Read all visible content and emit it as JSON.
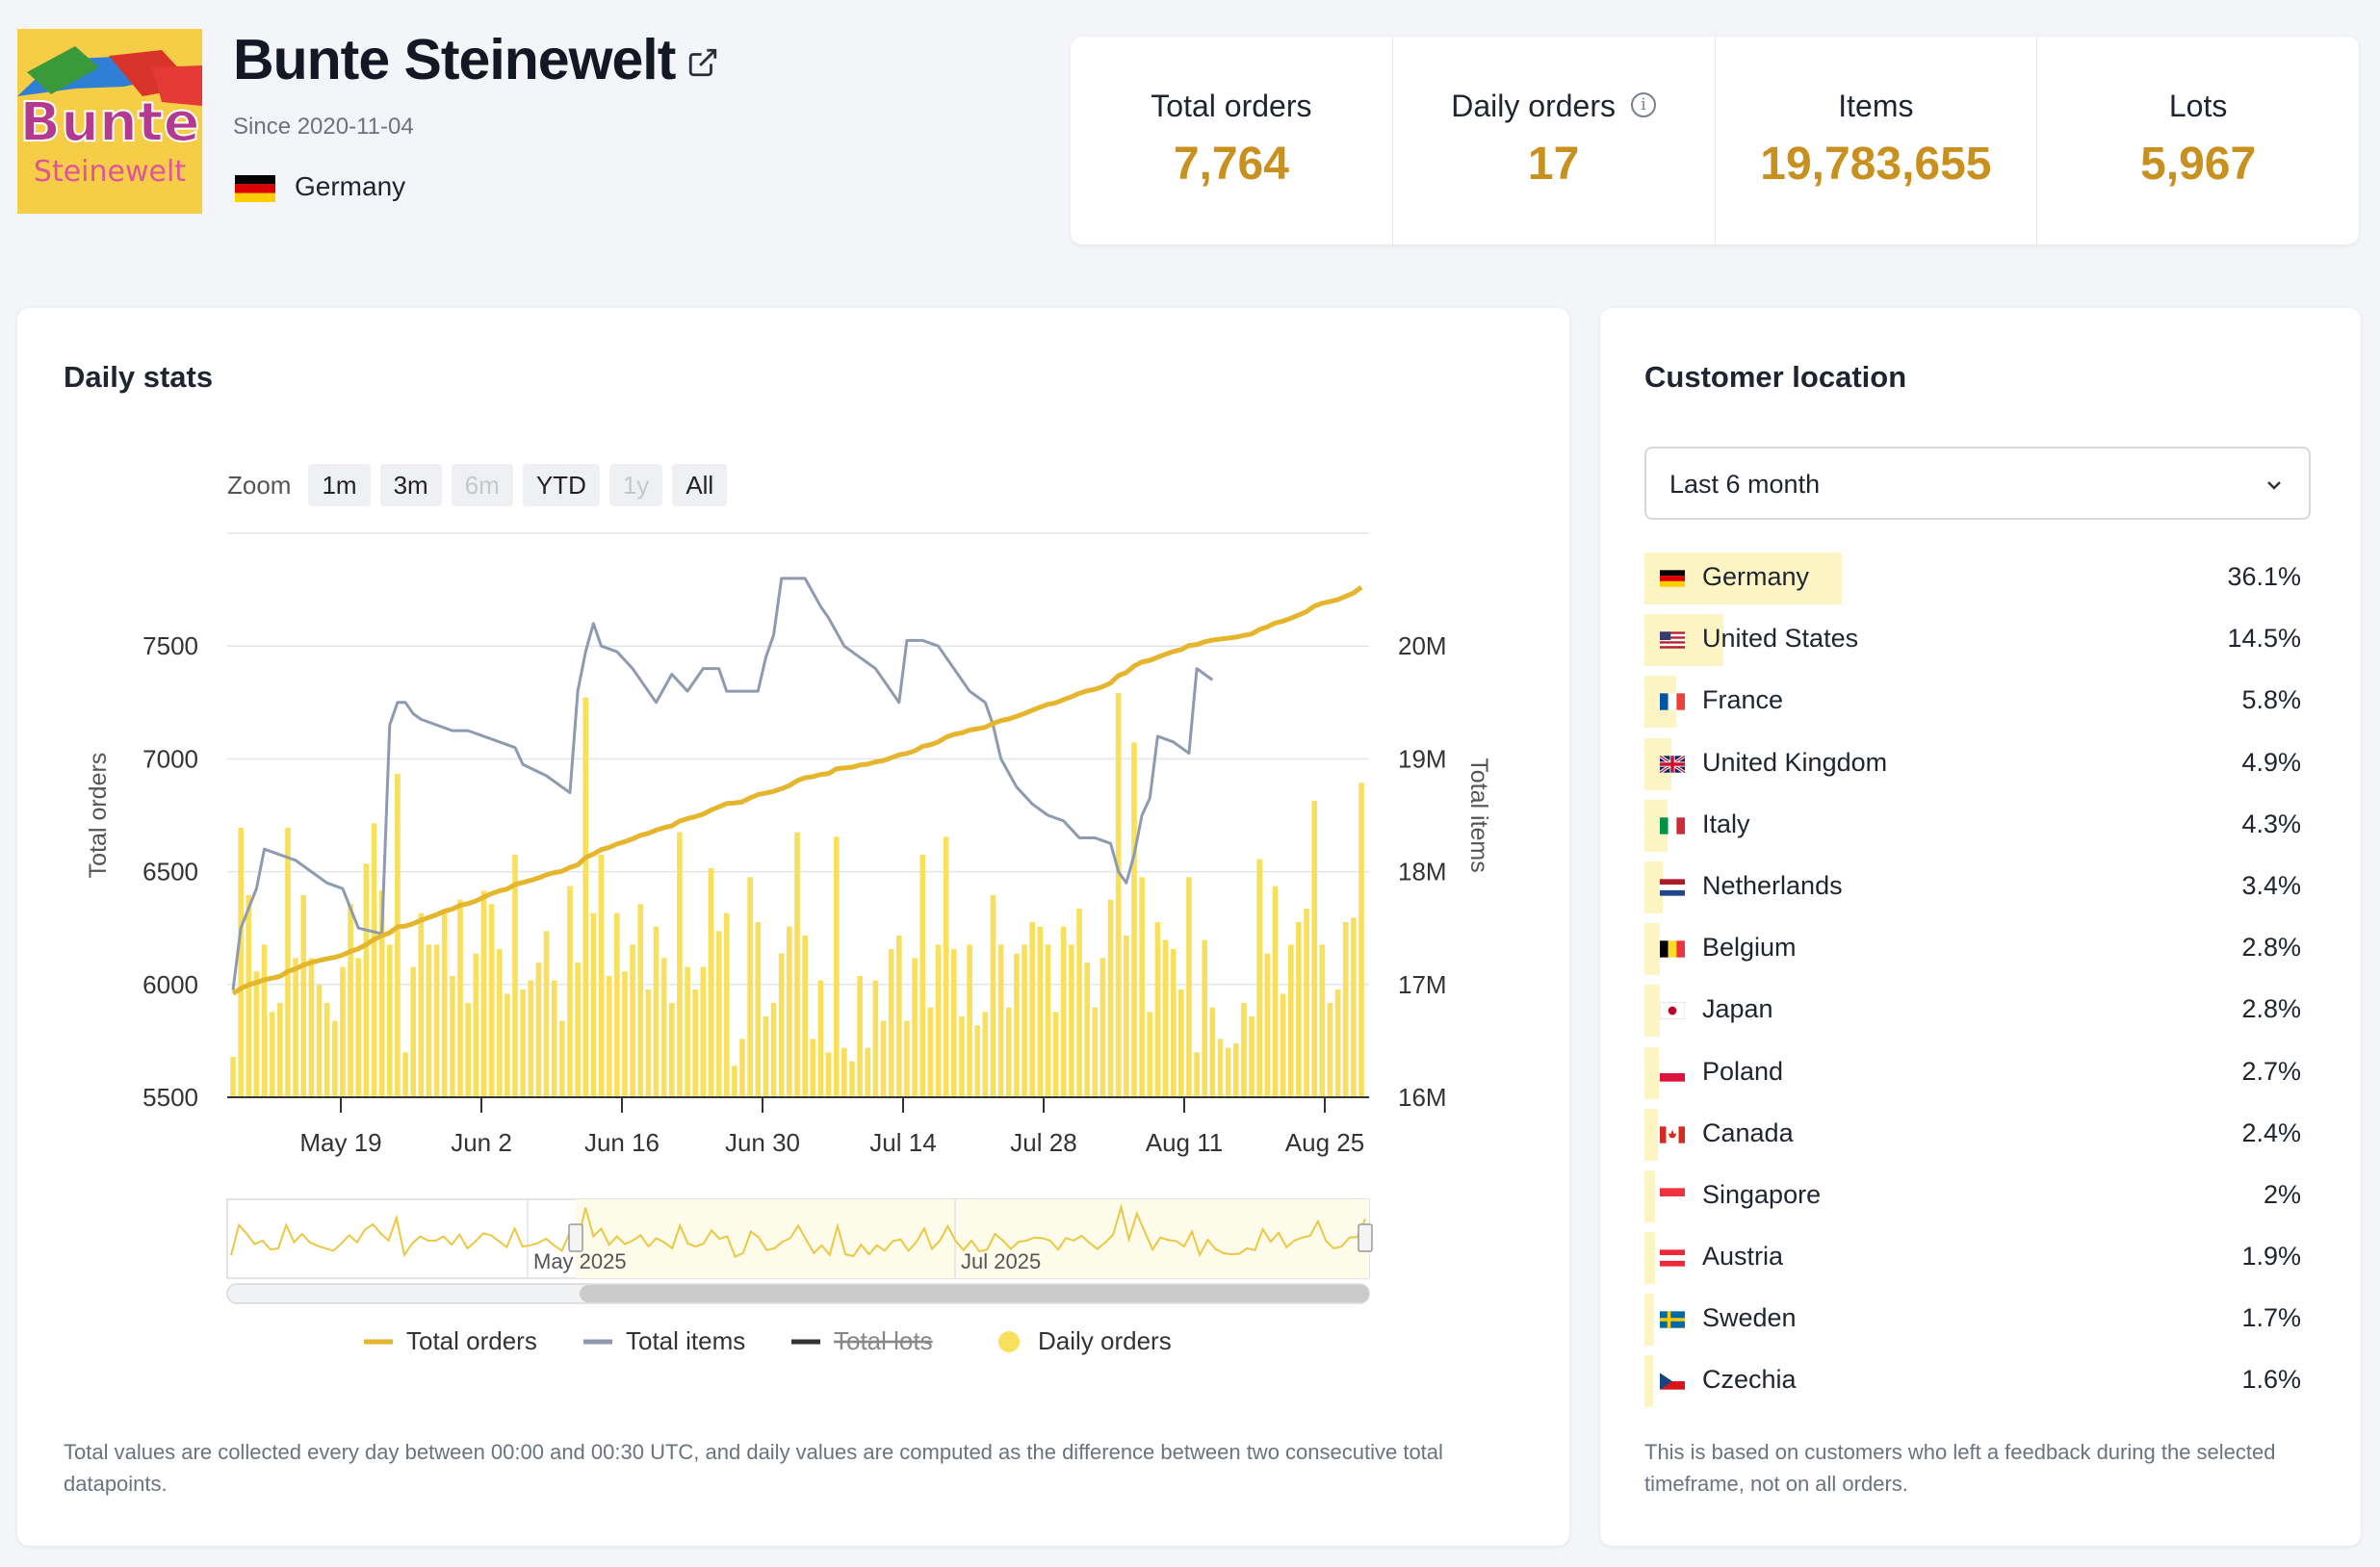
{
  "shop": {
    "name": "Bunte Steinewelt",
    "logo_text_top": "Bunte",
    "logo_text_bottom": "Steinewelt",
    "since": "Since 2020-11-04",
    "country": "Germany"
  },
  "stats": [
    {
      "label": "Total orders",
      "value": "7,764"
    },
    {
      "label": "Daily orders",
      "value": "17",
      "info": "i"
    },
    {
      "label": "Items",
      "value": "19,783,655"
    },
    {
      "label": "Lots",
      "value": "5,967"
    }
  ],
  "daily": {
    "title": "Daily stats",
    "zoom_label": "Zoom",
    "zoom_buttons": [
      {
        "label": "1m",
        "enabled": true
      },
      {
        "label": "3m",
        "enabled": true
      },
      {
        "label": "6m",
        "enabled": false
      },
      {
        "label": "YTD",
        "enabled": true
      },
      {
        "label": "1y",
        "enabled": false
      },
      {
        "label": "All",
        "enabled": true
      }
    ],
    "footnote": "Total values are collected every day between 00:00 and 00:30 UTC, and daily values are computed as the difference between two consecutive total datapoints."
  },
  "chart_data": {
    "type": "line",
    "title": "",
    "x_start": "2025-05-03",
    "x_end": "2025-08-31",
    "x_ticks": [
      "May 19",
      "Jun 2",
      "Jun 16",
      "Jun 30",
      "Jul 14",
      "Jul 28",
      "Aug 11",
      "Aug 25"
    ],
    "y_left": {
      "label": "Total orders",
      "ticks": [
        5500,
        6000,
        6500,
        7000,
        7500
      ],
      "range": [
        5500,
        8000
      ]
    },
    "y_right": {
      "label": "Total items",
      "ticks": [
        "16M",
        "17M",
        "18M",
        "19M",
        "20M"
      ],
      "range": [
        16000000,
        21000000
      ]
    },
    "navigator_labels": [
      "May 2025",
      "Jul 2025"
    ],
    "legend": [
      {
        "name": "Total orders",
        "color": "#e5b52e",
        "hidden": false
      },
      {
        "name": "Total items",
        "color": "#8d9ab0",
        "hidden": false
      },
      {
        "name": "Total lots",
        "color": "#333333",
        "hidden": true
      },
      {
        "name": "Daily orders",
        "color": "#f8df5c",
        "hidden": false
      }
    ],
    "total_orders": {
      "start": 5960,
      "end": 7764
    },
    "total_items_keypoints": [
      [
        0,
        16.95
      ],
      [
        1,
        17.5
      ],
      [
        3,
        17.85
      ],
      [
        4,
        18.2
      ],
      [
        8,
        18.1
      ],
      [
        10,
        18.0
      ],
      [
        12,
        17.9
      ],
      [
        14,
        17.85
      ],
      [
        16,
        17.5
      ],
      [
        19,
        17.45
      ],
      [
        20,
        19.3
      ],
      [
        21,
        19.5
      ],
      [
        22,
        19.5
      ],
      [
        23,
        19.4
      ],
      [
        24,
        19.35
      ],
      [
        26,
        19.3
      ],
      [
        28,
        19.25
      ],
      [
        30,
        19.25
      ],
      [
        32,
        19.2
      ],
      [
        34,
        19.15
      ],
      [
        36,
        19.1
      ],
      [
        37,
        18.95
      ],
      [
        40,
        18.85
      ],
      [
        43,
        18.7
      ],
      [
        44,
        19.6
      ],
      [
        45,
        19.95
      ],
      [
        46,
        20.2
      ],
      [
        47,
        20.0
      ],
      [
        49,
        19.95
      ],
      [
        51,
        19.8
      ],
      [
        53,
        19.6
      ],
      [
        54,
        19.5
      ],
      [
        56,
        19.75
      ],
      [
        58,
        19.6
      ],
      [
        60,
        19.8
      ],
      [
        62,
        19.8
      ],
      [
        63,
        19.6
      ],
      [
        65,
        19.6
      ],
      [
        67,
        19.6
      ],
      [
        68,
        19.9
      ],
      [
        69,
        20.1
      ],
      [
        70,
        20.6
      ],
      [
        72,
        20.6
      ],
      [
        73,
        20.6
      ],
      [
        75,
        20.35
      ],
      [
        76,
        20.25
      ],
      [
        78,
        20.0
      ],
      [
        80,
        19.9
      ],
      [
        82,
        19.8
      ],
      [
        84,
        19.6
      ],
      [
        85,
        19.5
      ],
      [
        86,
        20.05
      ],
      [
        88,
        20.05
      ],
      [
        90,
        20.0
      ],
      [
        92,
        19.8
      ],
      [
        94,
        19.6
      ],
      [
        96,
        19.5
      ],
      [
        97,
        19.3
      ],
      [
        98,
        19.0
      ],
      [
        100,
        18.75
      ],
      [
        102,
        18.6
      ],
      [
        104,
        18.5
      ],
      [
        106,
        18.45
      ],
      [
        108,
        18.3
      ],
      [
        110,
        18.3
      ],
      [
        112,
        18.25
      ],
      [
        113,
        18.0
      ],
      [
        114,
        17.9
      ],
      [
        115,
        18.15
      ],
      [
        116,
        18.5
      ],
      [
        117,
        18.65
      ],
      [
        118,
        19.2
      ],
      [
        120,
        19.15
      ],
      [
        121,
        19.1
      ],
      [
        122,
        19.05
      ],
      [
        123,
        19.8
      ],
      [
        124,
        19.75
      ],
      [
        125,
        19.7
      ]
    ],
    "daily_orders": [
      9,
      60,
      45,
      28,
      34,
      19,
      21,
      60,
      31,
      45,
      31,
      25,
      21,
      17,
      29,
      43,
      31,
      52,
      61,
      46,
      34,
      72,
      10,
      29,
      41,
      34,
      34,
      41,
      27,
      44,
      21,
      32,
      46,
      43,
      33,
      23,
      54,
      24,
      26,
      30,
      37,
      26,
      17,
      47,
      30,
      89,
      41,
      54,
      27,
      41,
      28,
      34,
      43,
      24,
      38,
      31,
      21,
      59,
      29,
      24,
      29,
      51,
      37,
      41,
      7,
      13,
      49,
      39,
      18,
      21,
      32,
      38,
      59,
      36,
      13,
      26,
      10,
      58,
      11,
      8,
      27,
      11,
      26,
      17,
      33,
      36,
      17,
      31,
      54,
      20,
      34,
      58,
      33,
      18,
      34,
      16,
      19,
      45,
      34,
      20,
      32,
      34,
      39,
      38,
      34,
      19,
      38,
      34,
      42,
      30,
      20,
      31,
      44,
      90,
      36,
      79,
      49,
      19,
      39,
      35,
      33,
      24,
      49,
      10,
      35,
      20,
      13,
      11,
      12,
      21,
      18,
      53,
      32,
      47,
      23,
      34,
      39,
      42,
      66,
      34,
      21,
      24,
      39,
      40,
      70
    ],
    "grid": true,
    "legend_position": "bottom"
  },
  "customer": {
    "title": "Customer location",
    "period": "Last 6 month",
    "countries": [
      {
        "name": "Germany",
        "pct": "36.1%",
        "value": 36.1
      },
      {
        "name": "United States",
        "pct": "14.5%",
        "value": 14.5
      },
      {
        "name": "France",
        "pct": "5.8%",
        "value": 5.8
      },
      {
        "name": "United Kingdom",
        "pct": "4.9%",
        "value": 4.9
      },
      {
        "name": "Italy",
        "pct": "4.3%",
        "value": 4.3
      },
      {
        "name": "Netherlands",
        "pct": "3.4%",
        "value": 3.4
      },
      {
        "name": "Belgium",
        "pct": "2.8%",
        "value": 2.8
      },
      {
        "name": "Japan",
        "pct": "2.8%",
        "value": 2.8
      },
      {
        "name": "Poland",
        "pct": "2.7%",
        "value": 2.7
      },
      {
        "name": "Canada",
        "pct": "2.4%",
        "value": 2.4
      },
      {
        "name": "Singapore",
        "pct": "2%",
        "value": 2.0
      },
      {
        "name": "Austria",
        "pct": "1.9%",
        "value": 1.9
      },
      {
        "name": "Sweden",
        "pct": "1.7%",
        "value": 1.7
      },
      {
        "name": "Czechia",
        "pct": "1.6%",
        "value": 1.6
      }
    ],
    "footnote": "This is based on customers who left a feedback during the selected timeframe, not on all orders."
  }
}
